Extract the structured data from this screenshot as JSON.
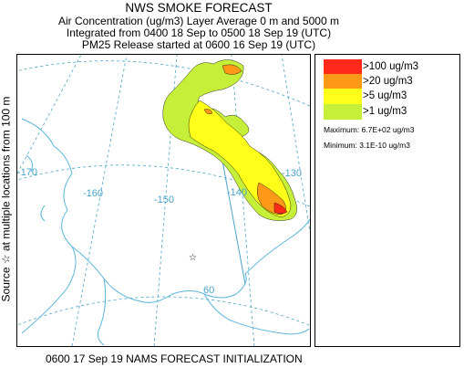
{
  "header": {
    "title": "NWS SMOKE FORECAST",
    "line1": "Air Concentration (ug/m3) Layer Average    0 m and  5000 m",
    "line2": "Integrated from 0400 18 Sep to 0500 18 Sep 19 (UTC)",
    "line3": "PM25 Release started at 0600 16 Sep 19 (UTC)"
  },
  "side_label": "Source ☆ at multiple locations   from  100 m",
  "legend": {
    "items": [
      {
        "label": ">100 ug/m3",
        "color": "#ff2a1a"
      },
      {
        "label": ">20 ug/m3",
        "color": "#ff9a18"
      },
      {
        "label": ">5 ug/m3",
        "color": "#ffff1a"
      },
      {
        "label": ">1 ug/m3",
        "color": "#c6ef3a"
      }
    ],
    "maximum": "Maximum: 6.7E+02 ug/m3",
    "minimum": "Minimum: 3.1E-10 ug/m3"
  },
  "map": {
    "longitude_labels": [
      "-170",
      "-160",
      "-150",
      "-140",
      "-130"
    ],
    "latitude_labels": [
      "60"
    ],
    "graticule_color": "#4aa3c8",
    "coast_color": "#5ab4dc",
    "source_marker": "☆"
  },
  "footer": "0600 17 Sep 19 NAMS FORECAST INITIALIZATION"
}
